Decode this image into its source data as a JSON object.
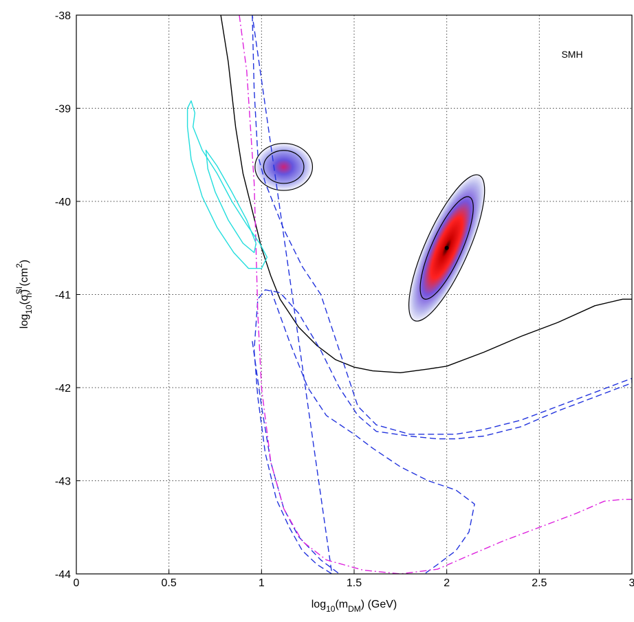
{
  "chart_data": {
    "type": "line",
    "title": "",
    "annotation": "SMH",
    "xlabel": {
      "pre": "log",
      "sub1": "10",
      "mid": "(m",
      "sub2": "DM",
      "post": ") (GeV)"
    },
    "ylabel": {
      "pre": "log",
      "sub1": "10",
      "mid1": "(σ",
      "sup": "SI",
      "sub2": "n",
      "mid2": ") (cm",
      "sup2": "2",
      "post": ")"
    },
    "xlim": [
      0,
      3
    ],
    "ylim": [
      -44,
      -38
    ],
    "x_ticks": [
      0,
      0.5,
      1,
      1.5,
      2,
      2.5,
      3
    ],
    "x_tick_labels": [
      "0",
      "0.5",
      "1",
      "1.5",
      "2",
      "2.5",
      "3"
    ],
    "y_ticks": [
      -38,
      -39,
      -40,
      -41,
      -42,
      -43,
      -44
    ],
    "y_tick_labels": [
      "-38",
      "-39",
      "-40",
      "-41",
      "-42",
      "-43",
      "-44"
    ],
    "grid": true,
    "colors": {
      "black": "#000000",
      "blue": "#2233dd",
      "magenta": "#dd22dd",
      "cyan": "#22dddd",
      "contour": "#000000"
    },
    "series": [
      {
        "style": "solid",
        "color": "black",
        "points": [
          [
            0.78,
            -38
          ],
          [
            0.82,
            -38.5
          ],
          [
            0.86,
            -39.2
          ],
          [
            0.9,
            -39.7
          ],
          [
            0.95,
            -40.1
          ],
          [
            1.0,
            -40.5
          ],
          [
            1.05,
            -40.8
          ],
          [
            1.1,
            -41.05
          ],
          [
            1.2,
            -41.35
          ],
          [
            1.3,
            -41.55
          ],
          [
            1.4,
            -41.7
          ],
          [
            1.5,
            -41.78
          ],
          [
            1.6,
            -41.82
          ],
          [
            1.75,
            -41.84
          ],
          [
            1.9,
            -41.8
          ],
          [
            2.0,
            -41.77
          ],
          [
            2.2,
            -41.62
          ],
          [
            2.4,
            -41.45
          ],
          [
            2.6,
            -41.3
          ],
          [
            2.8,
            -41.12
          ],
          [
            2.95,
            -41.05
          ],
          [
            3.0,
            -41.05
          ]
        ]
      },
      {
        "style": "dashed",
        "color": "blue",
        "closed": true,
        "points": [
          [
            0.95,
            -38
          ],
          [
            0.96,
            -38.8
          ],
          [
            0.98,
            -39.5
          ],
          [
            1.02,
            -39.8
          ],
          [
            1.12,
            -40.3
          ],
          [
            1.22,
            -40.7
          ],
          [
            1.32,
            -41.0
          ],
          [
            1.42,
            -41.6
          ],
          [
            1.52,
            -42.2
          ],
          [
            1.62,
            -42.4
          ],
          [
            1.8,
            -42.5
          ],
          [
            1.95,
            -42.5
          ],
          [
            2.05,
            -42.5
          ],
          [
            2.2,
            -42.45
          ],
          [
            2.4,
            -42.35
          ],
          [
            2.6,
            -42.2
          ],
          [
            2.8,
            -42.05
          ],
          [
            3.0,
            -41.9
          ],
          [
            3.0,
            -41.95
          ],
          [
            2.8,
            -42.1
          ],
          [
            2.6,
            -42.25
          ],
          [
            2.4,
            -42.42
          ],
          [
            2.2,
            -42.52
          ],
          [
            2.05,
            -42.55
          ],
          [
            1.95,
            -42.55
          ],
          [
            1.8,
            -42.52
          ],
          [
            1.62,
            -42.47
          ],
          [
            1.52,
            -42.3
          ],
          [
            1.42,
            -42.0
          ],
          [
            1.32,
            -41.6
          ],
          [
            1.2,
            -41.2
          ],
          [
            1.1,
            -40.98
          ],
          [
            1.02,
            -40.95
          ],
          [
            0.98,
            -41.05
          ],
          [
            0.96,
            -41.6
          ],
          [
            0.98,
            -42.1
          ],
          [
            1.02,
            -42.7
          ],
          [
            1.08,
            -43.2
          ],
          [
            1.15,
            -43.5
          ],
          [
            1.22,
            -43.75
          ],
          [
            1.3,
            -43.9
          ],
          [
            1.38,
            -44.0
          ]
        ]
      },
      {
        "style": "dashed",
        "color": "blue",
        "points": [
          [
            0.95,
            -41.5
          ],
          [
            1.0,
            -42.2
          ],
          [
            1.05,
            -42.8
          ],
          [
            1.12,
            -43.3
          ],
          [
            1.2,
            -43.6
          ],
          [
            1.32,
            -43.85
          ],
          [
            1.42,
            -44.0
          ]
        ]
      },
      {
        "style": "dashed",
        "color": "blue",
        "points": [
          [
            1.05,
            -40.95
          ],
          [
            1.15,
            -41.5
          ],
          [
            1.25,
            -42.0
          ],
          [
            1.35,
            -42.3
          ],
          [
            1.5,
            -42.5
          ],
          [
            1.6,
            -42.65
          ],
          [
            1.75,
            -42.85
          ],
          [
            1.9,
            -43.0
          ],
          [
            2.05,
            -43.1
          ],
          [
            2.15,
            -43.25
          ],
          [
            2.12,
            -43.55
          ],
          [
            2.05,
            -43.75
          ],
          [
            1.95,
            -43.9
          ],
          [
            1.88,
            -44.0
          ]
        ]
      },
      {
        "style": "dashdot",
        "color": "magenta",
        "points": [
          [
            0.88,
            -38
          ],
          [
            0.92,
            -38.6
          ],
          [
            0.94,
            -39.2
          ],
          [
            0.96,
            -39.8
          ],
          [
            0.97,
            -40.5
          ],
          [
            0.98,
            -41.2
          ],
          [
            1.0,
            -42.0
          ],
          [
            1.05,
            -42.8
          ],
          [
            1.12,
            -43.3
          ],
          [
            1.22,
            -43.65
          ],
          [
            1.35,
            -43.85
          ],
          [
            1.55,
            -43.96
          ],
          [
            1.75,
            -44.0
          ],
          [
            1.95,
            -43.95
          ],
          [
            2.1,
            -43.82
          ],
          [
            2.3,
            -43.65
          ],
          [
            2.5,
            -43.5
          ],
          [
            2.7,
            -43.35
          ],
          [
            2.85,
            -43.22
          ],
          [
            2.95,
            -43.2
          ],
          [
            3.0,
            -43.2
          ]
        ]
      },
      {
        "style": "solid",
        "color": "cyan",
        "closed": true,
        "points": [
          [
            0.6,
            -39.0
          ],
          [
            0.62,
            -38.92
          ],
          [
            0.64,
            -39.05
          ],
          [
            0.63,
            -39.2
          ],
          [
            0.68,
            -39.45
          ],
          [
            0.76,
            -39.7
          ],
          [
            0.84,
            -40.0
          ],
          [
            0.92,
            -40.25
          ],
          [
            0.99,
            -40.45
          ],
          [
            1.03,
            -40.6
          ],
          [
            1.0,
            -40.72
          ],
          [
            0.93,
            -40.72
          ],
          [
            0.85,
            -40.55
          ],
          [
            0.76,
            -40.28
          ],
          [
            0.68,
            -39.95
          ],
          [
            0.62,
            -39.55
          ],
          [
            0.6,
            -39.2
          ]
        ]
      },
      {
        "style": "solid",
        "color": "cyan",
        "closed": true,
        "points": [
          [
            0.7,
            -39.45
          ],
          [
            0.76,
            -39.62
          ],
          [
            0.84,
            -39.9
          ],
          [
            0.92,
            -40.2
          ],
          [
            0.97,
            -40.45
          ],
          [
            0.96,
            -40.55
          ],
          [
            0.9,
            -40.45
          ],
          [
            0.82,
            -40.2
          ],
          [
            0.75,
            -39.9
          ],
          [
            0.71,
            -39.65
          ]
        ]
      }
    ],
    "regions": [
      {
        "name": "low-mass-region",
        "cx": 1.12,
        "cy": -39.63,
        "rx": 0.16,
        "ry": 0.26,
        "angle": 0,
        "peak_color": "#cc2277"
      },
      {
        "name": "high-mass-region",
        "cx": 2.0,
        "cy": -40.5,
        "rx": 0.12,
        "ry": 0.88,
        "angle": 24,
        "peak_color": "#ee0000"
      }
    ]
  }
}
